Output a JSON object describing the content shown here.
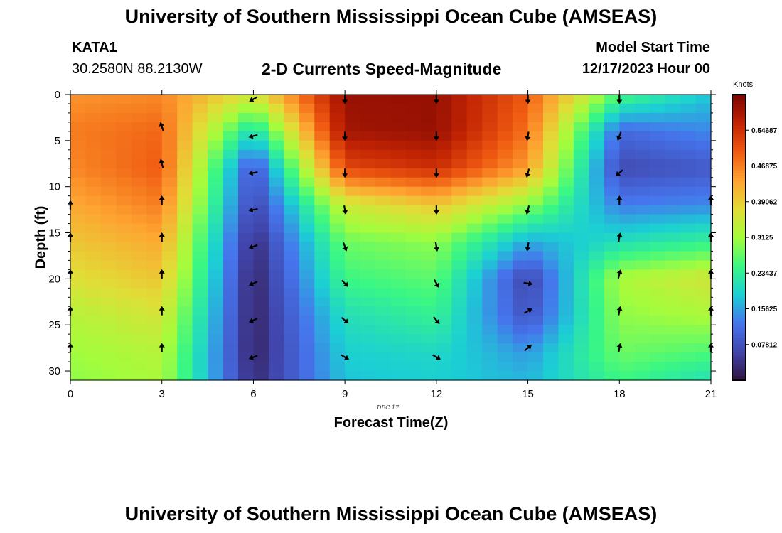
{
  "header": {
    "title": "University of Southern Mississippi Ocean Cube (AMSEAS)",
    "station_id": "KATA1",
    "coordinates": "30.2580N  88.2130W",
    "subtitle": "2-D Currents Speed-Magnitude",
    "model_start_label": "Model Start Time",
    "model_start_value": "12/17/2023 Hour 00"
  },
  "footer": {
    "title_repeat": "University of Southern Mississippi Ocean Cube (AMSEAS)"
  },
  "chart_data": {
    "type": "heatmap",
    "title": "2-D Currents Speed-Magnitude",
    "xlabel": "Forecast Time(Z)",
    "ylabel": "Depth (ft)",
    "date_label": "DEC 17",
    "xlim": [
      0,
      21
    ],
    "ylim": [
      31,
      0
    ],
    "x_ticks": [
      0,
      3,
      6,
      9,
      12,
      15,
      18,
      21
    ],
    "y_ticks": [
      0,
      5,
      10,
      15,
      20,
      25,
      30
    ],
    "colorbar": {
      "units": "Knots",
      "range": [
        0,
        0.625
      ],
      "ticks": [
        0.07812,
        0.15625,
        0.23437,
        0.3125,
        0.39062,
        0.46875,
        0.54687
      ]
    },
    "grid_hours": [
      0,
      3,
      6,
      9,
      12,
      15,
      18,
      21
    ],
    "grid_depths": [
      0,
      4,
      8,
      12,
      16,
      20,
      24,
      28,
      31
    ],
    "speed_knots": [
      [
        0.45,
        0.46,
        0.36,
        0.6,
        0.6,
        0.5,
        0.26,
        0.18
      ],
      [
        0.47,
        0.49,
        0.2,
        0.59,
        0.6,
        0.48,
        0.11,
        0.14
      ],
      [
        0.46,
        0.5,
        0.08,
        0.52,
        0.55,
        0.44,
        0.07,
        0.09
      ],
      [
        0.43,
        0.47,
        0.06,
        0.35,
        0.4,
        0.3,
        0.13,
        0.14
      ],
      [
        0.4,
        0.43,
        0.03,
        0.28,
        0.3,
        0.16,
        0.21,
        0.24
      ],
      [
        0.37,
        0.4,
        0.02,
        0.25,
        0.27,
        0.06,
        0.32,
        0.36
      ],
      [
        0.33,
        0.36,
        0.02,
        0.21,
        0.24,
        0.08,
        0.3,
        0.32
      ],
      [
        0.31,
        0.33,
        0.02,
        0.19,
        0.2,
        0.15,
        0.28,
        0.26
      ],
      [
        0.3,
        0.32,
        0.03,
        0.18,
        0.19,
        0.17,
        0.25,
        0.21
      ]
    ],
    "arrows": [
      {
        "hour": 0,
        "depths": [
          12,
          15.5,
          19.5,
          23.5,
          27.5
        ],
        "dir_deg": [
          0,
          0,
          0,
          0,
          0
        ]
      },
      {
        "hour": 3,
        "depths": [
          3.5,
          7.5,
          11.5,
          15.5,
          19.5,
          23.5,
          27.5
        ],
        "dir_deg": [
          -20,
          -15,
          0,
          0,
          0,
          0,
          0
        ]
      },
      {
        "hour": 6,
        "depths": [
          0.5,
          4.5,
          8.5,
          12.5,
          16.5,
          20.5,
          24.5,
          28.5
        ],
        "dir_deg": [
          -120,
          -105,
          -100,
          -100,
          -110,
          -115,
          -115,
          -110
        ]
      },
      {
        "hour": 9,
        "depths": [
          0.5,
          4.5,
          8.5,
          12.5,
          16.5,
          20.5,
          24.5,
          28.5
        ],
        "dir_deg": [
          180,
          180,
          180,
          170,
          160,
          135,
          130,
          120
        ]
      },
      {
        "hour": 12,
        "depths": [
          0.5,
          4.5,
          8.5,
          12.5,
          16.5,
          20.5,
          24.5,
          28.5
        ],
        "dir_deg": [
          180,
          180,
          180,
          180,
          170,
          150,
          140,
          120
        ]
      },
      {
        "hour": 15,
        "depths": [
          0.5,
          4.5,
          8.5,
          12.5,
          16.5,
          20.5,
          23.5,
          27.5
        ],
        "dir_deg": [
          180,
          190,
          195,
          195,
          190,
          100,
          60,
          50
        ]
      },
      {
        "hour": 18,
        "depths": [
          0.5,
          4.5,
          8.5,
          11.5,
          15.5,
          19.5,
          23.5,
          27.5
        ],
        "dir_deg": [
          180,
          200,
          230,
          0,
          10,
          15,
          10,
          10
        ]
      },
      {
        "hour": 21,
        "depths": [
          11.5,
          15.5,
          19.5,
          23.5,
          27.5
        ],
        "dir_deg": [
          0,
          0,
          0,
          0,
          0
        ]
      }
    ],
    "colors": {
      "low": "#30123b",
      "high": "#7a0403"
    }
  }
}
